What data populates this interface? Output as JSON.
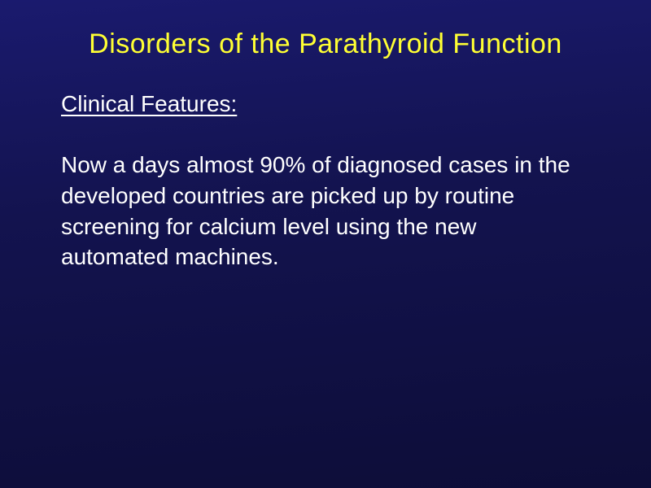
{
  "slide": {
    "title": "Disorders of the Parathyroid Function",
    "subtitle": "Clinical Features:",
    "body_paragraph": "Now a days almost 90% of diagnosed cases in the developed countries are picked up by routine screening for calcium level using the new automated machines.",
    "colors": {
      "background_gradient_top": "#1a1a6e",
      "background_gradient_mid": "#13134f",
      "background_gradient_bottom": "#0d0d38",
      "title_color": "#ffff33",
      "text_color": "#ffffff"
    },
    "typography": {
      "title_fontsize": 34,
      "subtitle_fontsize": 28,
      "body_fontsize": 28,
      "font_family": "Arial"
    }
  }
}
